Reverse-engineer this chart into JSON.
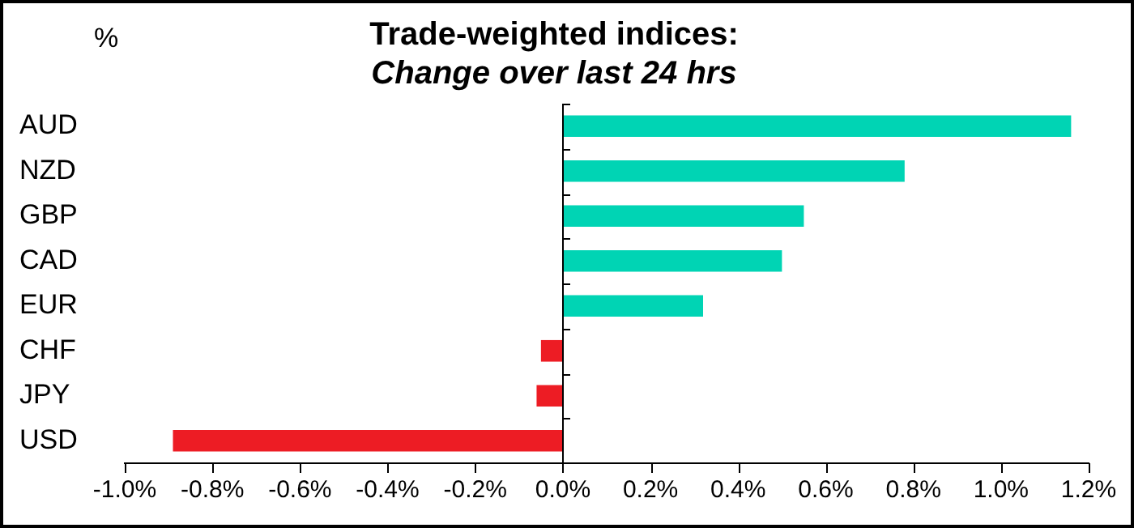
{
  "chart_data": {
    "type": "bar",
    "orientation": "horizontal",
    "title": "Trade-weighted indices:",
    "subtitle": "Change over last 24 hrs",
    "ylabel": "%",
    "categories": [
      "AUD",
      "NZD",
      "GBP",
      "CAD",
      "EUR",
      "CHF",
      "JPY",
      "USD"
    ],
    "values": [
      1.16,
      0.78,
      0.55,
      0.5,
      0.32,
      -0.05,
      -0.06,
      -0.89
    ],
    "colors": [
      "#00d4b4",
      "#00d4b4",
      "#00d4b4",
      "#00d4b4",
      "#00d4b4",
      "#ed1c24",
      "#ed1c24",
      "#ed1c24"
    ],
    "xlim": [
      -1.0,
      1.2
    ],
    "xticks": [
      {
        "value": -1.0,
        "label": "-1.0%"
      },
      {
        "value": -0.8,
        "label": "-0.8%"
      },
      {
        "value": -0.6,
        "label": "-0.6%"
      },
      {
        "value": -0.4,
        "label": "-0.4%"
      },
      {
        "value": -0.2,
        "label": "-0.2%"
      },
      {
        "value": 0,
        "label": "0.0%"
      },
      {
        "value": 0.2,
        "label": "0.2%"
      },
      {
        "value": 0.4,
        "label": "0.4%"
      },
      {
        "value": 0.6,
        "label": "0.6%"
      },
      {
        "value": 0.8,
        "label": "0.8%"
      },
      {
        "value": 1.0,
        "label": "1.0%"
      },
      {
        "value": 1.2,
        "label": "1.2%"
      }
    ],
    "ref_lines": [
      {
        "axis": "x",
        "value": 0,
        "color": "#000000"
      }
    ],
    "grid": false,
    "legend": false
  }
}
